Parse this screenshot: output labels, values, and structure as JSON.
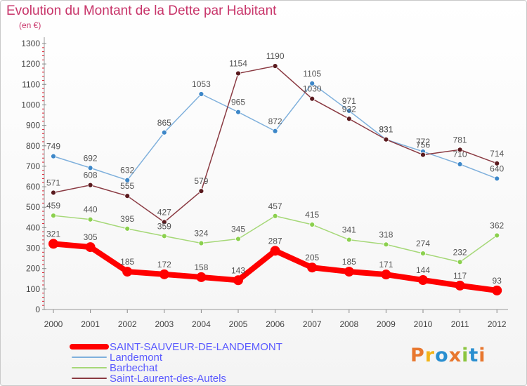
{
  "title": "Evolution du Montant de la Dette par Habitant",
  "subtitle": "(en €)",
  "logo": {
    "text": "Proxiti",
    "colors": [
      "#e8772e",
      "#f2b418",
      "#2a8fd0",
      "#e8772e",
      "#8bc53f",
      "#2a8fd0",
      "#e8772e"
    ]
  },
  "chart_data": {
    "type": "line",
    "x": [
      "2000",
      "2001",
      "2002",
      "2003",
      "2004",
      "2005",
      "2006",
      "2007",
      "2008",
      "2009",
      "2010",
      "2011",
      "2012"
    ],
    "ylim": [
      0,
      1300
    ],
    "yticks": [
      0,
      100,
      200,
      300,
      400,
      500,
      600,
      700,
      800,
      900,
      1000,
      1100,
      1200,
      1300
    ],
    "grid": false,
    "legend_position": "bottom-left",
    "series": [
      {
        "name": "SAINT-SAUVEUR-DE-LANDEMONT",
        "color": "#ff0000",
        "marker": "#ff0000",
        "width": 8,
        "legend_color": "#5a5aff",
        "values": [
          321,
          305,
          185,
          172,
          158,
          143,
          287,
          205,
          185,
          171,
          144,
          117,
          93
        ]
      },
      {
        "name": "Landemont",
        "color": "#7fb0dc",
        "marker": "#3d87c8",
        "width": 1.5,
        "legend_color": "#5a5aff",
        "values": [
          749,
          692,
          632,
          865,
          1053,
          965,
          872,
          1105,
          971,
          831,
          772,
          710,
          640
        ]
      },
      {
        "name": "Barbechat",
        "color": "#a6d878",
        "marker": "#8bd04e",
        "width": 1.5,
        "legend_color": "#5a5aff",
        "values": [
          459,
          440,
          395,
          359,
          324,
          345,
          457,
          415,
          341,
          318,
          274,
          232,
          362
        ]
      },
      {
        "name": "Saint-Laurent-des-Autels",
        "color": "#8a3a42",
        "marker": "#5a1a1e",
        "width": 1.5,
        "legend_color": "#5a5aff",
        "values": [
          571,
          608,
          555,
          427,
          579,
          1154,
          1190,
          1030,
          932,
          831,
          756,
          781,
          714
        ]
      }
    ]
  }
}
